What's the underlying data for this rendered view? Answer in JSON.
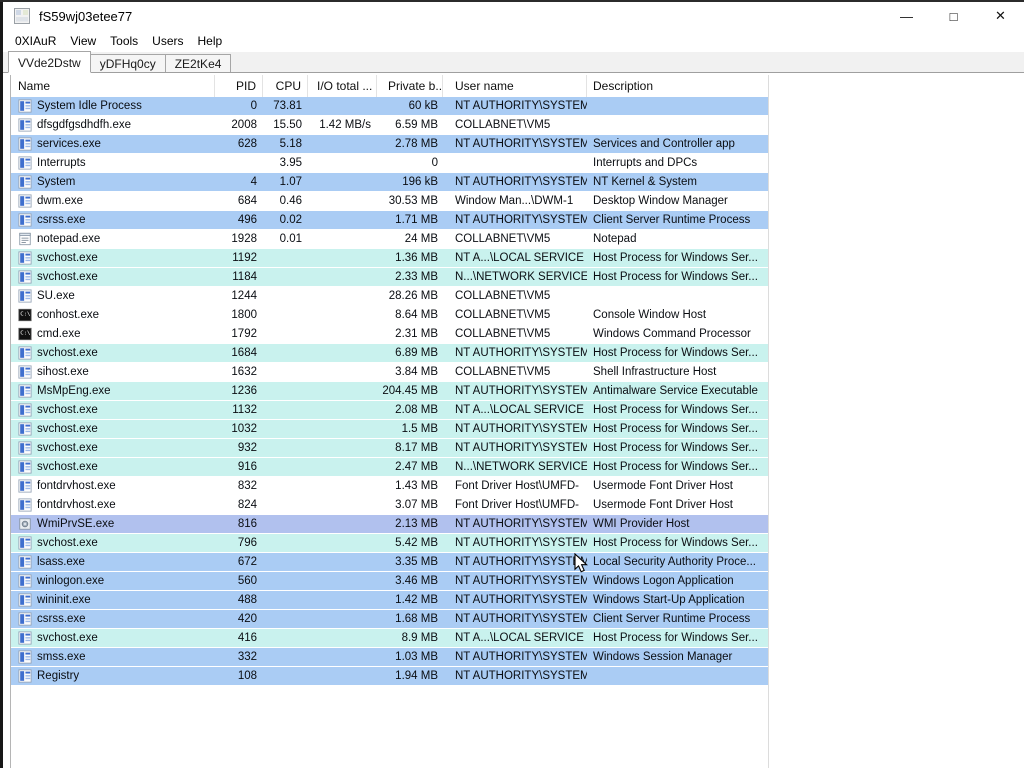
{
  "window": {
    "title": "fS59wj03etee77",
    "minimize_label": "—",
    "maximize_label": "□",
    "close_label": "✕"
  },
  "menu": {
    "items": [
      "0XIAuR",
      "View",
      "Tools",
      "Users",
      "Help"
    ]
  },
  "tabs": [
    {
      "label": "VVde2Dstw",
      "active": true
    },
    {
      "label": "yDFHq0cy",
      "active": false
    },
    {
      "label": "ZE2tKe4",
      "active": false
    }
  ],
  "table": {
    "columns": [
      {
        "id": "name",
        "label": "Name"
      },
      {
        "id": "pid",
        "label": "PID"
      },
      {
        "id": "cpu",
        "label": "CPU"
      },
      {
        "id": "io",
        "label": "I/O total ..."
      },
      {
        "id": "priv",
        "label": "Private b..."
      },
      {
        "id": "user",
        "label": "User name"
      },
      {
        "id": "desc",
        "label": "Description"
      }
    ],
    "rows": [
      {
        "icon": "app",
        "name": "System Idle Process",
        "pid": "0",
        "cpu": "73.81",
        "io": "",
        "priv": "60 kB",
        "user": "NT AUTHORITY\\SYSTEM",
        "desc": "",
        "type": "blue"
      },
      {
        "icon": "app",
        "name": "dfsgdfgsdhdfh.exe",
        "pid": "2008",
        "cpu": "15.50",
        "io": "1.42 MB/s",
        "priv": "6.59 MB",
        "user": "COLLABNET\\VM5",
        "desc": "",
        "type": "white"
      },
      {
        "icon": "app",
        "name": "services.exe",
        "pid": "628",
        "cpu": "5.18",
        "io": "",
        "priv": "2.78 MB",
        "user": "NT AUTHORITY\\SYSTEM",
        "desc": "Services and Controller app",
        "type": "blue"
      },
      {
        "icon": "app",
        "name": "Interrupts",
        "pid": "",
        "cpu": "3.95",
        "io": "",
        "priv": "0",
        "user": "",
        "desc": "Interrupts and DPCs",
        "type": "white"
      },
      {
        "icon": "app",
        "name": "System",
        "pid": "4",
        "cpu": "1.07",
        "io": "",
        "priv": "196 kB",
        "user": "NT AUTHORITY\\SYSTEM",
        "desc": "NT Kernel & System",
        "type": "blue"
      },
      {
        "icon": "app",
        "name": "dwm.exe",
        "pid": "684",
        "cpu": "0.46",
        "io": "",
        "priv": "30.53 MB",
        "user": "Window Man...\\DWM-1",
        "desc": "Desktop Window Manager",
        "type": "white"
      },
      {
        "icon": "app",
        "name": "csrss.exe",
        "pid": "496",
        "cpu": "0.02",
        "io": "",
        "priv": "1.71 MB",
        "user": "NT AUTHORITY\\SYSTEM",
        "desc": "Client Server Runtime Process",
        "type": "blue"
      },
      {
        "icon": "notepad",
        "name": "notepad.exe",
        "pid": "1928",
        "cpu": "0.01",
        "io": "",
        "priv": "24 MB",
        "user": "COLLABNET\\VM5",
        "desc": "Notepad",
        "type": "white"
      },
      {
        "icon": "app",
        "name": "svchost.exe",
        "pid": "1192",
        "cpu": "",
        "io": "",
        "priv": "1.36 MB",
        "user": "NT A...\\LOCAL SERVICE",
        "desc": "Host Process for Windows Ser...",
        "type": "cyan"
      },
      {
        "icon": "app",
        "name": "svchost.exe",
        "pid": "1184",
        "cpu": "",
        "io": "",
        "priv": "2.33 MB",
        "user": "N...\\NETWORK SERVICE",
        "desc": "Host Process for Windows Ser...",
        "type": "cyan"
      },
      {
        "icon": "app",
        "name": "SU.exe",
        "pid": "1244",
        "cpu": "",
        "io": "",
        "priv": "28.26 MB",
        "user": "COLLABNET\\VM5",
        "desc": "",
        "type": "white"
      },
      {
        "icon": "console",
        "name": "conhost.exe",
        "pid": "1800",
        "cpu": "",
        "io": "",
        "priv": "8.64 MB",
        "user": "COLLABNET\\VM5",
        "desc": "Console Window Host",
        "type": "white"
      },
      {
        "icon": "console",
        "name": "cmd.exe",
        "pid": "1792",
        "cpu": "",
        "io": "",
        "priv": "2.31 MB",
        "user": "COLLABNET\\VM5",
        "desc": "Windows Command Processor",
        "type": "white"
      },
      {
        "icon": "app",
        "name": "svchost.exe",
        "pid": "1684",
        "cpu": "",
        "io": "",
        "priv": "6.89 MB",
        "user": "NT AUTHORITY\\SYSTEM",
        "desc": "Host Process for Windows Ser...",
        "type": "cyan"
      },
      {
        "icon": "app",
        "name": "sihost.exe",
        "pid": "1632",
        "cpu": "",
        "io": "",
        "priv": "3.84 MB",
        "user": "COLLABNET\\VM5",
        "desc": "Shell Infrastructure Host",
        "type": "white"
      },
      {
        "icon": "app",
        "name": "MsMpEng.exe",
        "pid": "1236",
        "cpu": "",
        "io": "",
        "priv": "204.45 MB",
        "user": "NT AUTHORITY\\SYSTEM",
        "desc": "Antimalware Service Executable",
        "type": "cyan"
      },
      {
        "icon": "app",
        "name": "svchost.exe",
        "pid": "1132",
        "cpu": "",
        "io": "",
        "priv": "2.08 MB",
        "user": "NT A...\\LOCAL SERVICE",
        "desc": "Host Process for Windows Ser...",
        "type": "cyan"
      },
      {
        "icon": "app",
        "name": "svchost.exe",
        "pid": "1032",
        "cpu": "",
        "io": "",
        "priv": "1.5 MB",
        "user": "NT AUTHORITY\\SYSTEM",
        "desc": "Host Process for Windows Ser...",
        "type": "cyan"
      },
      {
        "icon": "app",
        "name": "svchost.exe",
        "pid": "932",
        "cpu": "",
        "io": "",
        "priv": "8.17 MB",
        "user": "NT AUTHORITY\\SYSTEM",
        "desc": "Host Process for Windows Ser...",
        "type": "cyan"
      },
      {
        "icon": "app",
        "name": "svchost.exe",
        "pid": "916",
        "cpu": "",
        "io": "",
        "priv": "2.47 MB",
        "user": "N...\\NETWORK SERVICE",
        "desc": "Host Process for Windows Ser...",
        "type": "cyan"
      },
      {
        "icon": "app",
        "name": "fontdrvhost.exe",
        "pid": "832",
        "cpu": "",
        "io": "",
        "priv": "1.43 MB",
        "user": "Font Driver Host\\UMFD-",
        "desc": "Usermode Font Driver Host",
        "type": "white"
      },
      {
        "icon": "app",
        "name": "fontdrvhost.exe",
        "pid": "824",
        "cpu": "",
        "io": "",
        "priv": "3.07 MB",
        "user": "Font Driver Host\\UMFD-",
        "desc": "Usermode Font Driver Host",
        "type": "white"
      },
      {
        "icon": "wmi",
        "name": "WmiPrvSE.exe",
        "pid": "816",
        "cpu": "",
        "io": "",
        "priv": "2.13 MB",
        "user": "NT AUTHORITY\\SYSTEM",
        "desc": "WMI Provider Host",
        "type": "lavender"
      },
      {
        "icon": "app",
        "name": "svchost.exe",
        "pid": "796",
        "cpu": "",
        "io": "",
        "priv": "5.42 MB",
        "user": "NT AUTHORITY\\SYSTEM",
        "desc": "Host Process for Windows Ser...",
        "type": "cyan"
      },
      {
        "icon": "app",
        "name": "lsass.exe",
        "pid": "672",
        "cpu": "",
        "io": "",
        "priv": "3.35 MB",
        "user": "NT AUTHORITY\\SYSTEM",
        "desc": "Local Security Authority Proce...",
        "type": "blue"
      },
      {
        "icon": "winlogon",
        "name": "winlogon.exe",
        "pid": "560",
        "cpu": "",
        "io": "",
        "priv": "3.46 MB",
        "user": "NT AUTHORITY\\SYSTEM",
        "desc": "Windows Logon Application",
        "type": "blue"
      },
      {
        "icon": "app",
        "name": "wininit.exe",
        "pid": "488",
        "cpu": "",
        "io": "",
        "priv": "1.42 MB",
        "user": "NT AUTHORITY\\SYSTEM",
        "desc": "Windows Start-Up Application",
        "type": "blue"
      },
      {
        "icon": "app",
        "name": "csrss.exe",
        "pid": "420",
        "cpu": "",
        "io": "",
        "priv": "1.68 MB",
        "user": "NT AUTHORITY\\SYSTEM",
        "desc": "Client Server Runtime Process",
        "type": "blue"
      },
      {
        "icon": "app",
        "name": "svchost.exe",
        "pid": "416",
        "cpu": "",
        "io": "",
        "priv": "8.9 MB",
        "user": "NT A...\\LOCAL SERVICE",
        "desc": "Host Process for Windows Ser...",
        "type": "cyan"
      },
      {
        "icon": "app",
        "name": "smss.exe",
        "pid": "332",
        "cpu": "",
        "io": "",
        "priv": "1.03 MB",
        "user": "NT AUTHORITY\\SYSTEM",
        "desc": "Windows Session Manager",
        "type": "blue"
      },
      {
        "icon": "app",
        "name": "Registry",
        "pid": "108",
        "cpu": "",
        "io": "",
        "priv": "1.94 MB",
        "user": "NT AUTHORITY\\SYSTEM",
        "desc": "",
        "type": "blue"
      }
    ]
  },
  "colors": {
    "row_blue": "#aaccf4",
    "row_cyan": "#c9f2ee",
    "row_lavender": "#b1c1ee",
    "row_white": "#ffffff"
  }
}
